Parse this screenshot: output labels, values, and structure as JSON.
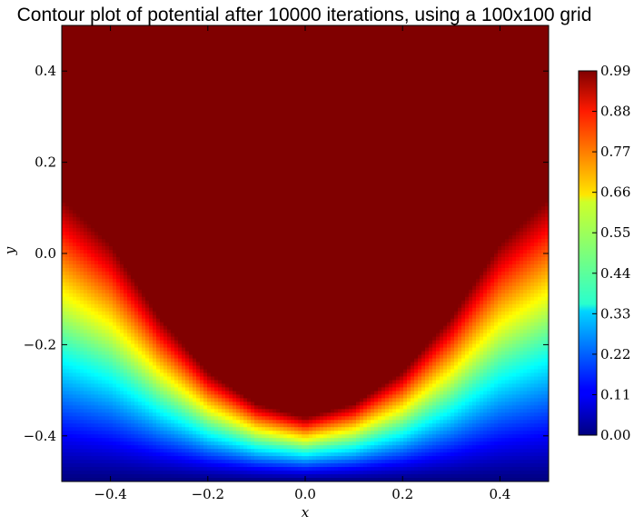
{
  "chart_data": {
    "type": "heatmap",
    "title": "Contour plot of potential after 10000 iterations, using a 100x100 grid",
    "xlabel": "x",
    "ylabel": "y",
    "xlim": [
      -0.5,
      0.5
    ],
    "ylim": [
      -0.5,
      0.5
    ],
    "x_ticks": [
      "−0.4",
      "−0.2",
      "0.0",
      "0.2",
      "0.4"
    ],
    "x_tick_values": [
      -0.4,
      -0.2,
      0.0,
      0.2,
      0.4
    ],
    "y_ticks": [
      "0.4",
      "0.2",
      "0.0",
      "−0.2",
      "−0.4"
    ],
    "y_tick_values": [
      0.4,
      0.2,
      0.0,
      -0.2,
      -0.4
    ],
    "colorbar": {
      "colormap": "jet",
      "vmin": 0.0,
      "vmax": 0.99,
      "ticks": [
        "0.99",
        "0.88",
        "0.77",
        "0.66",
        "0.55",
        "0.44",
        "0.33",
        "0.22",
        "0.11",
        "0.00"
      ],
      "tick_values": [
        0.99,
        0.88,
        0.77,
        0.66,
        0.55,
        0.44,
        0.33,
        0.22,
        0.11,
        0.0
      ]
    },
    "grid": false,
    "field_description": {
      "uniform_max_region": "upper bowl-shaped region with potential 0.99",
      "boundary_profile_y": [
        {
          "x": -0.5,
          "y": 0.12
        },
        {
          "x": -0.4,
          "y": 0.02
        },
        {
          "x": -0.3,
          "y": -0.14
        },
        {
          "x": -0.2,
          "y": -0.26
        },
        {
          "x": -0.1,
          "y": -0.33
        },
        {
          "x": 0.0,
          "y": -0.36
        },
        {
          "x": 0.1,
          "y": -0.33
        },
        {
          "x": 0.2,
          "y": -0.26
        },
        {
          "x": 0.3,
          "y": -0.14
        },
        {
          "x": 0.4,
          "y": 0.02
        },
        {
          "x": 0.5,
          "y": 0.12
        }
      ],
      "bottom_value": 0.0
    }
  }
}
